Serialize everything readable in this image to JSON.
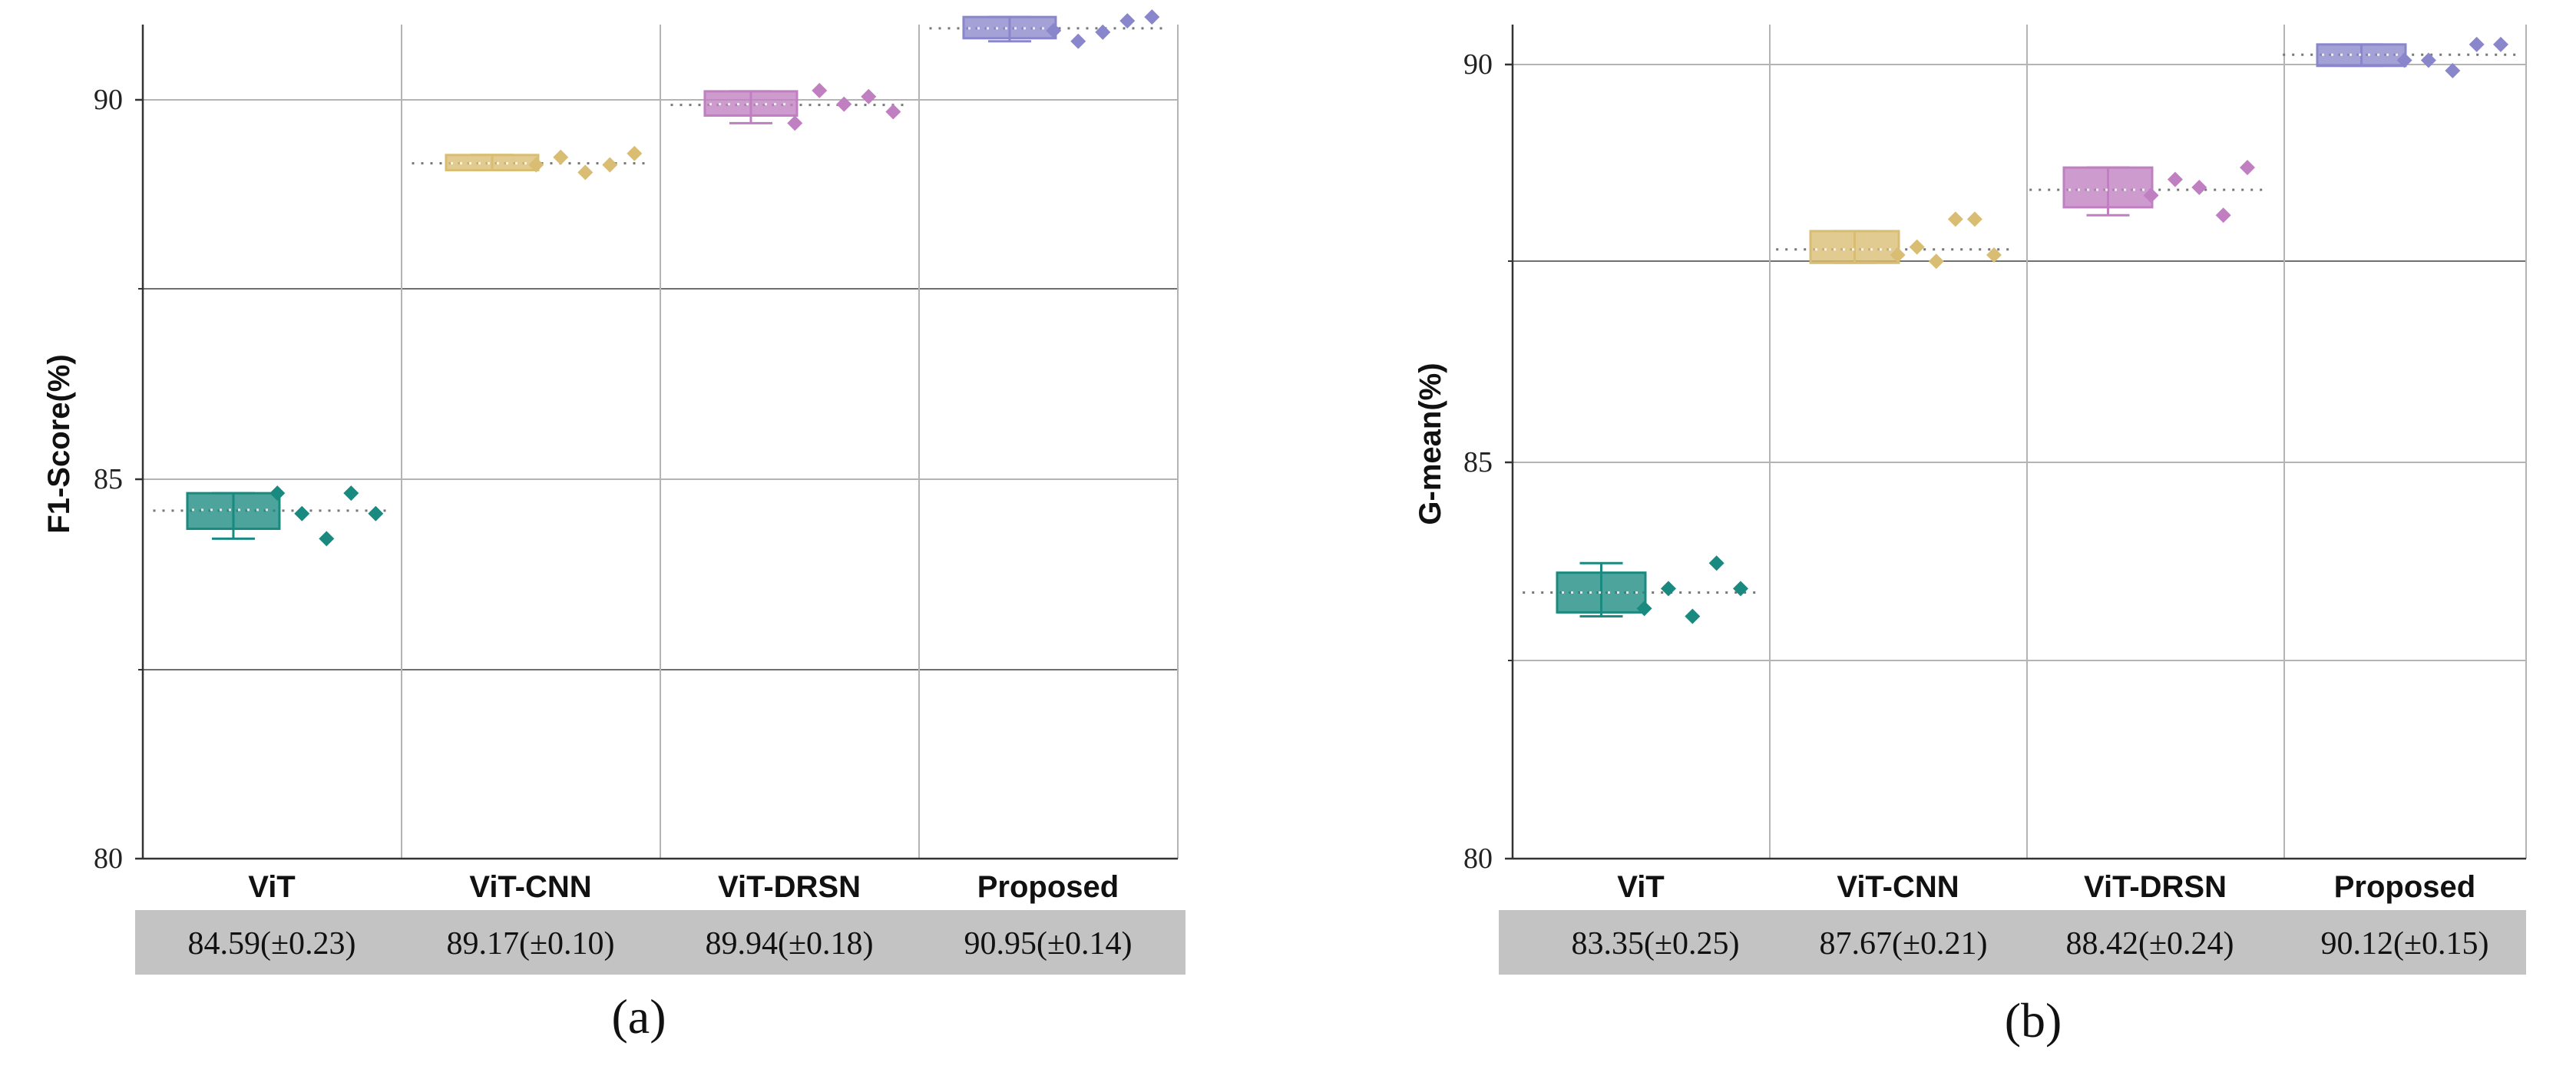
{
  "chart_data": [
    {
      "type": "box",
      "panel_label": "(a)",
      "ylabel": "F1-Score(%)",
      "ylim": [
        80,
        91
      ],
      "yticks": [
        80,
        85,
        90
      ],
      "categories": [
        "ViT",
        "ViT-CNN",
        "ViT-DRSN",
        "Proposed"
      ],
      "summary_row": [
        "84.59(±0.23)",
        "89.17(±0.10)",
        "89.94(±0.18)",
        "90.95(±0.14)"
      ],
      "series": [
        {
          "name": "ViT",
          "color": "#1a8a80",
          "mean": 84.59,
          "box": {
            "q1": 84.35,
            "median": 84.6,
            "q3": 84.82,
            "whisker_low": 84.22,
            "whisker_high": 84.82
          },
          "points": [
            84.82,
            84.55,
            84.22,
            84.82,
            84.55
          ]
        },
        {
          "name": "ViT-CNN",
          "color": "#d9bd72",
          "mean": 89.17,
          "box": {
            "q1": 89.08,
            "median": 89.17,
            "q3": 89.28,
            "whisker_low": 89.08,
            "whisker_high": 89.28
          },
          "points": [
            89.15,
            89.25,
            89.05,
            89.15,
            89.3
          ]
        },
        {
          "name": "ViT-DRSN",
          "color": "#c07fc0",
          "mean": 89.94,
          "box": {
            "q1": 89.8,
            "median": 89.95,
            "q3": 90.12,
            "whisker_low": 89.7,
            "whisker_high": 90.12
          },
          "points": [
            89.7,
            90.13,
            89.95,
            90.05,
            89.85
          ]
        },
        {
          "name": "Proposed",
          "color": "#8a86cc",
          "mean": 90.95,
          "box": {
            "q1": 90.82,
            "median": 90.95,
            "q3": 91.1,
            "whisker_low": 90.78,
            "whisker_high": 91.1
          },
          "points": [
            90.92,
            90.78,
            90.9,
            91.05,
            91.1
          ]
        }
      ]
    },
    {
      "type": "box",
      "panel_label": "(b)",
      "ylabel": "G-mean(%)",
      "ylim": [
        80,
        90.5
      ],
      "yticks": [
        80,
        85,
        90
      ],
      "categories": [
        "ViT",
        "ViT-CNN",
        "ViT-DRSN",
        "Proposed"
      ],
      "summary_row": [
        "83.35(±0.25)",
        "87.67(±0.21)",
        "88.42(±0.24)",
        "90.12(±0.15)"
      ],
      "series": [
        {
          "name": "ViT",
          "color": "#1a8a80",
          "mean": 83.35,
          "box": {
            "q1": 83.1,
            "median": 83.35,
            "q3": 83.6,
            "whisker_low": 83.05,
            "whisker_high": 83.72
          },
          "points": [
            83.15,
            83.4,
            83.05,
            83.72,
            83.4
          ]
        },
        {
          "name": "ViT-CNN",
          "color": "#d9bd72",
          "mean": 87.67,
          "box": {
            "q1": 87.5,
            "median": 87.67,
            "q3": 87.9,
            "whisker_low": 87.5,
            "whisker_high": 87.9
          },
          "points": [
            87.6,
            87.7,
            87.52,
            88.05,
            88.05,
            87.6
          ]
        },
        {
          "name": "ViT-DRSN",
          "color": "#c07fc0",
          "mean": 88.42,
          "box": {
            "q1": 88.2,
            "median": 88.42,
            "q3": 88.7,
            "whisker_low": 88.1,
            "whisker_high": 88.7
          },
          "points": [
            88.35,
            88.55,
            88.45,
            88.1,
            88.7
          ]
        },
        {
          "name": "Proposed",
          "color": "#8a86cc",
          "mean": 90.12,
          "box": {
            "q1": 89.98,
            "median": 90.12,
            "q3": 90.25,
            "whisker_low": 89.98,
            "whisker_high": 90.25
          },
          "points": [
            90.05,
            90.05,
            89.92,
            90.25,
            90.25
          ]
        }
      ]
    }
  ]
}
